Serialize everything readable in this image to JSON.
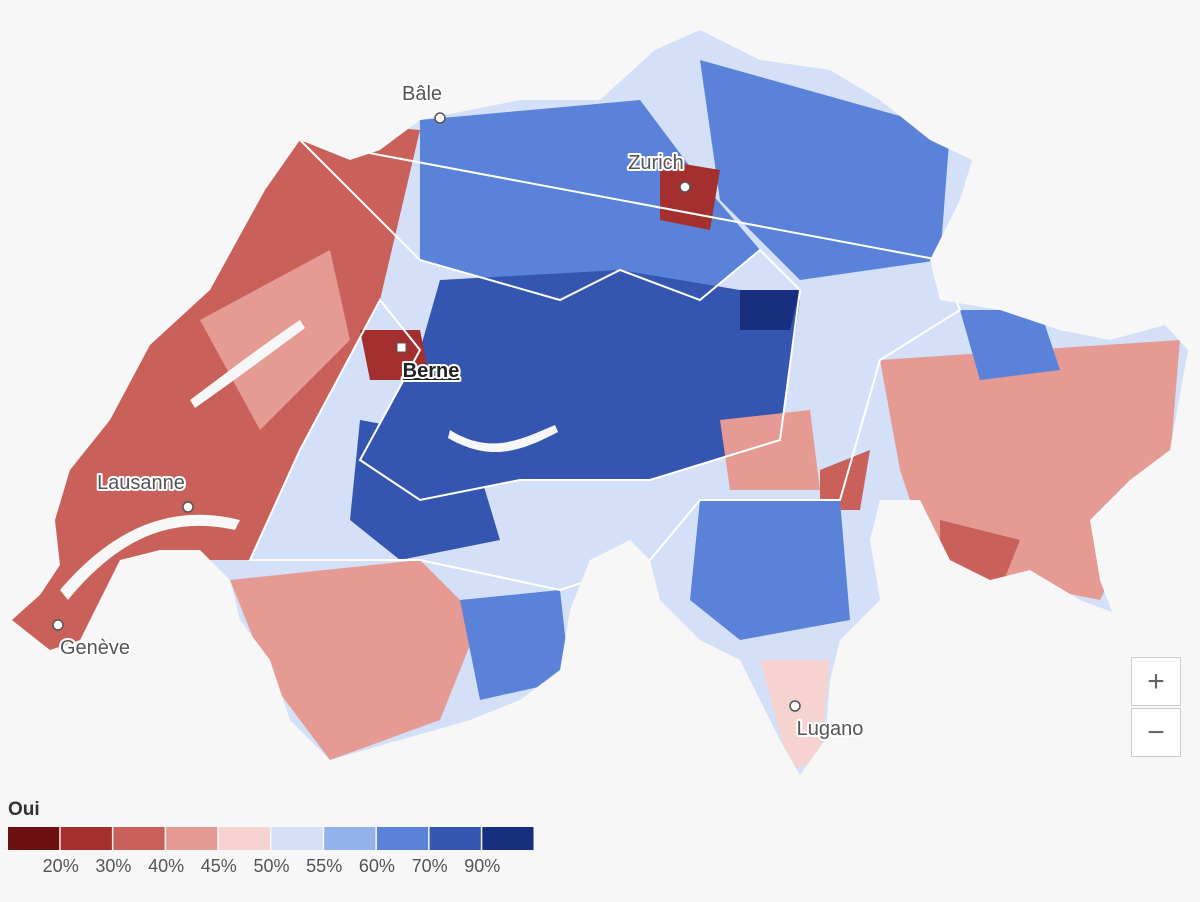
{
  "map": {
    "cities": [
      {
        "label": "Bâle"
      },
      {
        "label": "Zurich"
      },
      {
        "label": "Berne"
      },
      {
        "label": "Lausanne"
      },
      {
        "label": "Genève"
      },
      {
        "label": "Lugano"
      }
    ]
  },
  "legend": {
    "title": "Oui",
    "colors": [
      "#6b0f10",
      "#a3302e",
      "#c9605a",
      "#e59a93",
      "#f6d3d0",
      "#d3e0f7",
      "#93b2ec",
      "#5a82d8",
      "#3556b0",
      "#182f80"
    ],
    "labels": [
      "20%",
      "30%",
      "40%",
      "45%",
      "50%",
      "55%",
      "60%",
      "70%",
      "90%"
    ]
  },
  "zoom": {
    "in": "+",
    "out": "−"
  }
}
